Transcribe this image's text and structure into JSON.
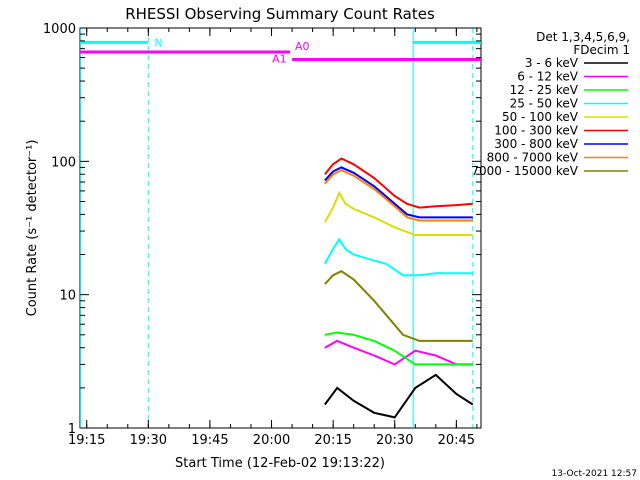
{
  "chart_data": {
    "type": "line",
    "title": "RHESSI Observing Summary Count Rates",
    "xlabel": "Start Time (12-Feb-02 19:13:22)",
    "ylabel": "Count Rate (s⁻¹ detector⁻¹)",
    "yscale": "log",
    "ylim": [
      1,
      1000
    ],
    "xlim": [
      "19:13:22",
      "20:51:00"
    ],
    "x_ticks": [
      "19:15",
      "19:30",
      "19:45",
      "20:00",
      "20:15",
      "20:30",
      "20:45"
    ],
    "y_ticks": [
      "1",
      "10",
      "100",
      "1000"
    ],
    "legend_title": [
      "Det 1,3,4,5,6,9,",
      "FDecim 1"
    ],
    "legend_position": "top-right",
    "footer": "13-Oct-2021 12:57",
    "attenuator_bars": [
      {
        "label": "N",
        "segments": [
          [
            "19:13:22",
            "19:30:00"
          ],
          [
            "20:34:30",
            "20:51:00"
          ]
        ],
        "level": 780,
        "color": "#00ffff"
      },
      {
        "label": "A0",
        "segments": [
          [
            "19:13:22",
            "20:04:30"
          ]
        ],
        "level": 660,
        "color": "#ff00ff"
      },
      {
        "label": "A1",
        "segments": [
          [
            "20:05:00",
            "20:51:00"
          ]
        ],
        "level": 580,
        "color": "#ff00ff"
      }
    ],
    "vertical_markers": [
      {
        "time": "19:13:30",
        "style": "solid",
        "color": "#00ffff"
      },
      {
        "time": "19:30:00",
        "style": "dashed",
        "color": "#00ffff"
      },
      {
        "time": "20:34:30",
        "style": "solid",
        "color": "#00ffff"
      },
      {
        "time": "20:49:00",
        "style": "dashed",
        "color": "#00ffff"
      }
    ],
    "series": [
      {
        "name": "3 - 6 keV",
        "color": "#000000",
        "points": [
          [
            "20:13:00",
            1.5
          ],
          [
            "20:16:00",
            2.0
          ],
          [
            "20:20:00",
            1.6
          ],
          [
            "20:25:00",
            1.3
          ],
          [
            "20:30:00",
            1.2
          ],
          [
            "20:35:00",
            2.0
          ],
          [
            "20:40:00",
            2.5
          ],
          [
            "20:45:00",
            1.8
          ],
          [
            "20:49:00",
            1.5
          ]
        ]
      },
      {
        "name": "6 - 12 keV",
        "color": "#ff00ff",
        "points": [
          [
            "20:13:00",
            4.0
          ],
          [
            "20:16:00",
            4.5
          ],
          [
            "20:20:00",
            4.0
          ],
          [
            "20:25:00",
            3.5
          ],
          [
            "20:30:00",
            3.0
          ],
          [
            "20:35:00",
            3.8
          ],
          [
            "20:40:00",
            3.5
          ],
          [
            "20:45:00",
            3.0
          ],
          [
            "20:49:00",
            3.0
          ]
        ]
      },
      {
        "name": "12 - 25 keV",
        "color": "#00ff00",
        "points": [
          [
            "20:13:00",
            5.0
          ],
          [
            "20:16:00",
            5.2
          ],
          [
            "20:20:00",
            5.0
          ],
          [
            "20:25:00",
            4.5
          ],
          [
            "20:30:00",
            3.8
          ],
          [
            "20:35:00",
            3.0
          ],
          [
            "20:40:00",
            3.0
          ],
          [
            "20:45:00",
            3.0
          ],
          [
            "20:49:00",
            3.0
          ]
        ]
      },
      {
        "name": "25 - 50 keV",
        "color": "#00ffff",
        "points": [
          [
            "20:13:00",
            17
          ],
          [
            "20:15:00",
            22
          ],
          [
            "20:16:30",
            26
          ],
          [
            "20:18:00",
            22
          ],
          [
            "20:20:00",
            20
          ],
          [
            "20:25:00",
            18
          ],
          [
            "20:28:00",
            17
          ],
          [
            "20:32:00",
            14
          ],
          [
            "20:36:00",
            14
          ],
          [
            "20:40:00",
            14.5
          ],
          [
            "20:45:00",
            14.5
          ],
          [
            "20:49:00",
            14.5
          ]
        ]
      },
      {
        "name": "50 - 100 keV",
        "color": "#dddd00",
        "points": [
          [
            "20:13:00",
            35
          ],
          [
            "20:15:00",
            45
          ],
          [
            "20:16:30",
            58
          ],
          [
            "20:18:00",
            48
          ],
          [
            "20:20:00",
            44
          ],
          [
            "20:25:00",
            38
          ],
          [
            "20:30:00",
            32
          ],
          [
            "20:35:00",
            28
          ],
          [
            "20:40:00",
            28
          ],
          [
            "20:45:00",
            28
          ],
          [
            "20:49:00",
            28
          ]
        ]
      },
      {
        "name": "100 - 300 keV",
        "color": "#ff0000",
        "points": [
          [
            "20:13:00",
            80
          ],
          [
            "20:15:00",
            95
          ],
          [
            "20:17:00",
            105
          ],
          [
            "20:20:00",
            95
          ],
          [
            "20:25:00",
            75
          ],
          [
            "20:30:00",
            55
          ],
          [
            "20:33:00",
            48
          ],
          [
            "20:36:00",
            45
          ],
          [
            "20:40:00",
            46
          ],
          [
            "20:45:00",
            47
          ],
          [
            "20:49:00",
            48
          ]
        ]
      },
      {
        "name": "300 - 800 keV",
        "color": "#0000ff",
        "points": [
          [
            "20:13:00",
            72
          ],
          [
            "20:15:00",
            84
          ],
          [
            "20:17:00",
            90
          ],
          [
            "20:20:00",
            82
          ],
          [
            "20:25:00",
            65
          ],
          [
            "20:30:00",
            48
          ],
          [
            "20:33:00",
            40
          ],
          [
            "20:36:00",
            38
          ],
          [
            "20:40:00",
            38
          ],
          [
            "20:45:00",
            38
          ],
          [
            "20:49:00",
            38
          ]
        ]
      },
      {
        "name": "800 - 7000 keV",
        "color": "#ff8000",
        "points": [
          [
            "20:13:00",
            68
          ],
          [
            "20:15:00",
            80
          ],
          [
            "20:17:00",
            86
          ],
          [
            "20:20:00",
            78
          ],
          [
            "20:25:00",
            62
          ],
          [
            "20:30:00",
            46
          ],
          [
            "20:33:00",
            38
          ],
          [
            "20:36:00",
            36
          ],
          [
            "20:40:00",
            36
          ],
          [
            "20:45:00",
            36
          ],
          [
            "20:49:00",
            36
          ]
        ]
      },
      {
        "name": "7000 - 15000 keV",
        "color": "#808000",
        "points": [
          [
            "20:13:00",
            12
          ],
          [
            "20:15:00",
            14
          ],
          [
            "20:17:00",
            15
          ],
          [
            "20:20:00",
            13
          ],
          [
            "20:25:00",
            9
          ],
          [
            "20:28:00",
            7
          ],
          [
            "20:32:00",
            5
          ],
          [
            "20:36:00",
            4.5
          ],
          [
            "20:40:00",
            4.5
          ],
          [
            "20:45:00",
            4.5
          ],
          [
            "20:49:00",
            4.5
          ]
        ]
      }
    ]
  }
}
